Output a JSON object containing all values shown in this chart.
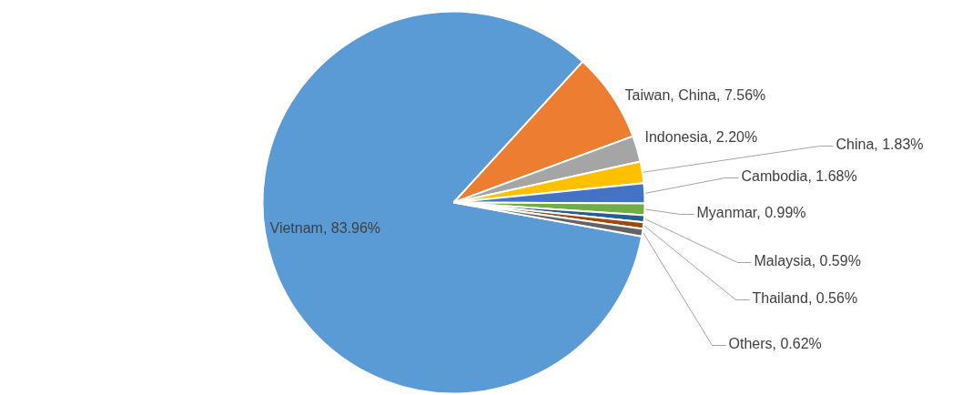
{
  "chart_data": {
    "type": "pie",
    "categories": [
      "Vietnam",
      "Taiwan, China",
      "Indonesia",
      "China",
      "Cambodia",
      "Myanmar",
      "Malaysia",
      "Thailand",
      "Others"
    ],
    "values": [
      83.96,
      7.56,
      2.2,
      1.83,
      1.68,
      0.99,
      0.59,
      0.56,
      0.62
    ],
    "colors": [
      "#5b9bd5",
      "#ed7d31",
      "#a5a5a5",
      "#ffc000",
      "#4472c4",
      "#70ad47",
      "#255e91",
      "#9e480e",
      "#636363"
    ],
    "value_labels": [
      "83.96%",
      "7.56%",
      "2.20%",
      "1.83%",
      "1.68%",
      "0.99%",
      "0.59%",
      "0.56%",
      "0.62%"
    ],
    "legend": false
  }
}
